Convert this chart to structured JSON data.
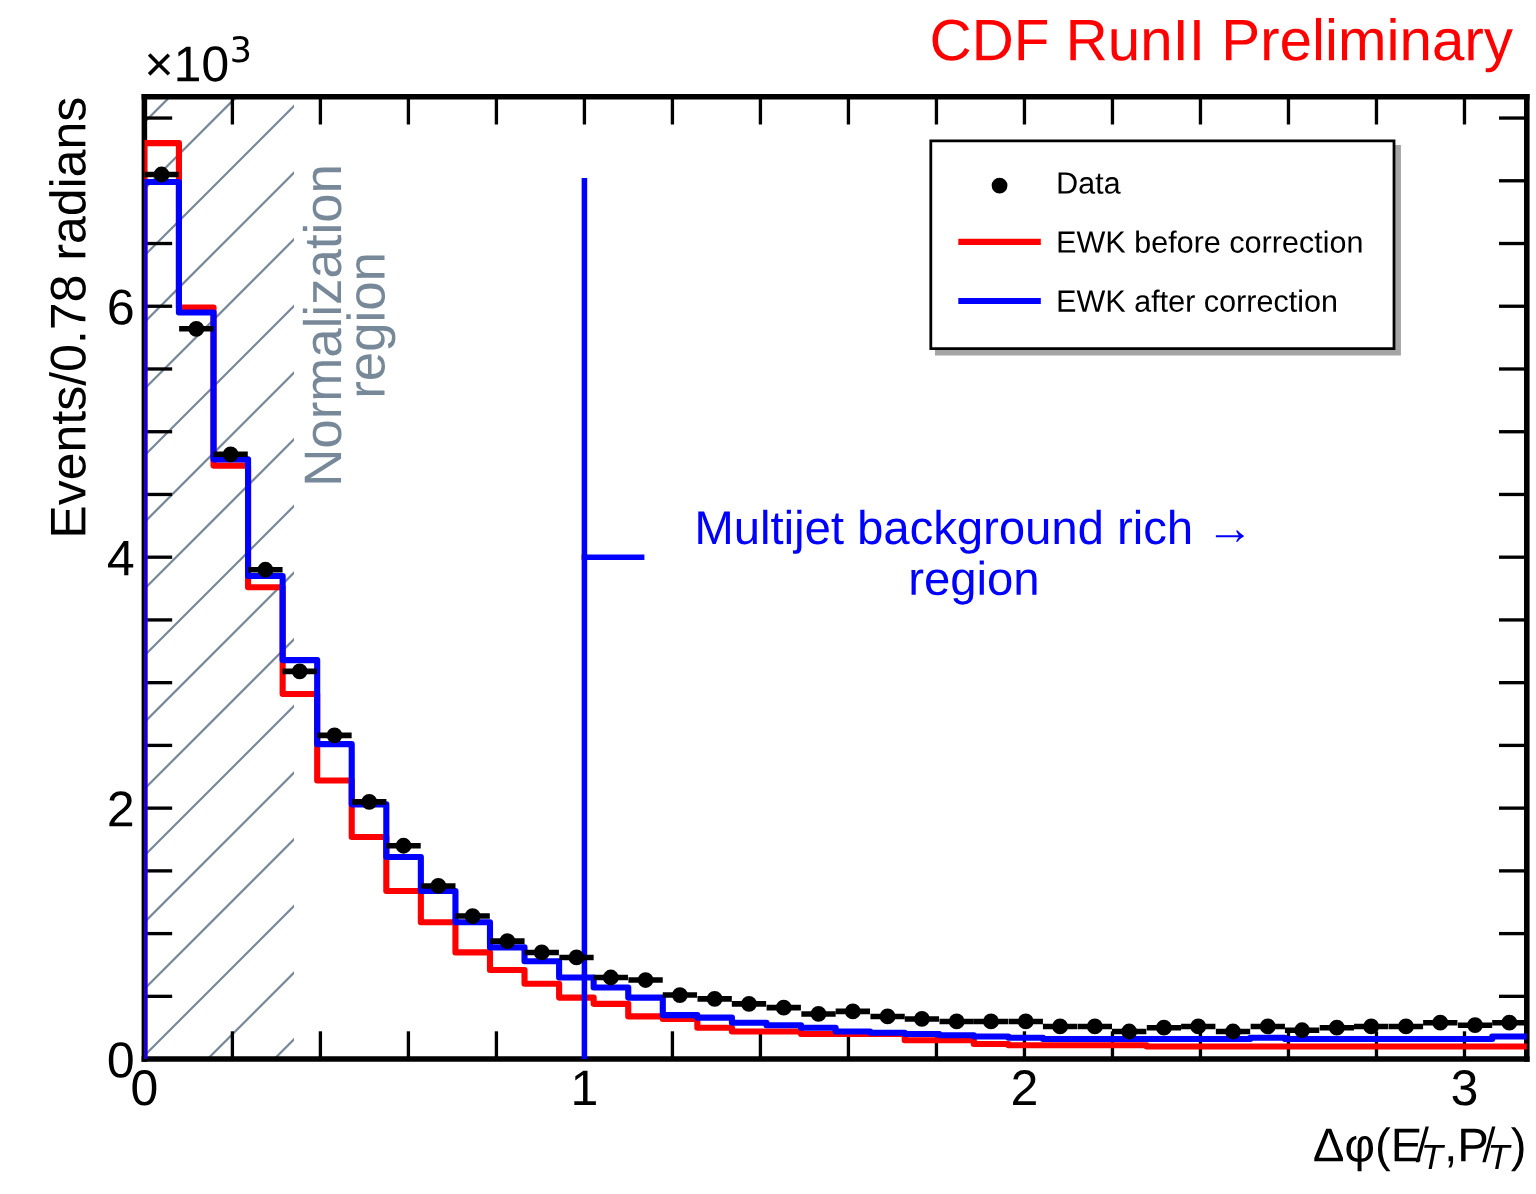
{
  "chart_data": {
    "type": "histogram",
    "title": "CDF RunII Preliminary",
    "xlabel": "Δφ(E̸$_{T}$,P̸$_{T}$)",
    "ylabel": "Events/0.78 radians",
    "annotations": [
      "×10$^{3}$",
      {
        "text": "Multijet background rich →\nregion",
        "x": 1.0,
        "y": 4.0
      }
    ],
    "bins": [
      0,
      0.0785,
      0.1571,
      0.2356,
      0.3142,
      0.3927,
      0.4712,
      0.5498,
      0.6283,
      0.7069,
      0.7854,
      0.8639,
      0.9425,
      1.021,
      1.0996,
      1.1781,
      1.2566,
      1.3352,
      1.4137,
      1.4923,
      1.5708,
      1.6493,
      1.7279,
      1.8064,
      1.885,
      1.9635,
      2.042,
      2.1206,
      2.1991,
      2.2777,
      2.3562,
      2.4347,
      2.5133,
      2.5918,
      2.6704,
      2.7489,
      2.8274,
      2.906,
      2.9845,
      3.0631,
      3.1416
    ],
    "series": [
      {
        "name": "Data",
        "type": "scatter",
        "color": "#000000",
        "x": [
          0.039,
          0.118,
          0.196,
          0.275,
          0.353,
          0.432,
          0.511,
          0.589,
          0.668,
          0.746,
          0.825,
          0.903,
          0.982,
          1.06,
          1.139,
          1.217,
          1.296,
          1.374,
          1.453,
          1.532,
          1.61,
          1.689,
          1.767,
          1.846,
          1.924,
          2.003,
          2.081,
          2.16,
          2.238,
          2.317,
          2.395,
          2.474,
          2.553,
          2.631,
          2.71,
          2.788,
          2.867,
          2.945,
          3.024,
          3.102
        ],
        "values": [
          7.05,
          5.82,
          4.82,
          3.9,
          3.09,
          2.58,
          2.05,
          1.7,
          1.38,
          1.14,
          0.94,
          0.85,
          0.81,
          0.65,
          0.63,
          0.51,
          0.48,
          0.44,
          0.41,
          0.36,
          0.38,
          0.34,
          0.32,
          0.3,
          0.3,
          0.3,
          0.26,
          0.26,
          0.22,
          0.25,
          0.26,
          0.22,
          0.26,
          0.23,
          0.25,
          0.26,
          0.26,
          0.29,
          0.27,
          0.29
        ],
        "xerrors": [
          0.039,
          0.039,
          0.039,
          0.039,
          0.039,
          0.039,
          0.039,
          0.039,
          0.039,
          0.039,
          0.039,
          0.039,
          0.039,
          0.039,
          0.039,
          0.039,
          0.039,
          0.039,
          0.039,
          0.039,
          0.039,
          0.039,
          0.039,
          0.039,
          0.039,
          0.039,
          0.039,
          0.039,
          0.039,
          0.039,
          0.039,
          0.039,
          0.039,
          0.039,
          0.039,
          0.039,
          0.039,
          0.039,
          0.039,
          0.039
        ]
      },
      {
        "name": "EWK before correction",
        "color": "#ff0000",
        "values": [
          7.3,
          5.99,
          4.73,
          3.76,
          2.91,
          2.22,
          1.77,
          1.34,
          1.09,
          0.85,
          0.71,
          0.6,
          0.49,
          0.44,
          0.34,
          0.32,
          0.25,
          0.22,
          0.22,
          0.2,
          0.2,
          0.2,
          0.15,
          0.15,
          0.12,
          0.11,
          0.11,
          0.11,
          0.11,
          0.1,
          0.1,
          0.1,
          0.1,
          0.1,
          0.1,
          0.1,
          0.1,
          0.1,
          0.1,
          0.1
        ]
      },
      {
        "name": "EWK after correction",
        "color": "#0000ff",
        "values": [
          6.99,
          5.95,
          4.78,
          3.85,
          3.18,
          2.51,
          2.03,
          1.61,
          1.34,
          1.09,
          0.89,
          0.78,
          0.65,
          0.57,
          0.49,
          0.35,
          0.33,
          0.29,
          0.27,
          0.25,
          0.22,
          0.21,
          0.2,
          0.19,
          0.18,
          0.17,
          0.16,
          0.16,
          0.16,
          0.16,
          0.16,
          0.16,
          0.17,
          0.16,
          0.16,
          0.16,
          0.16,
          0.16,
          0.16,
          0.18
        ]
      }
    ],
    "ref_lines": [
      {
        "axis": "x",
        "value": 1.0,
        "color": "#0000ff"
      }
    ],
    "bands": [
      {
        "axis": "x",
        "from": 0,
        "to": 0.34,
        "label": "Normalization\nregion",
        "color": "#778899"
      }
    ],
    "xlim": [
      0,
      3.1416
    ],
    "ylim": [
      0,
      7.67
    ],
    "xticks": [
      0,
      {
        "value": 0.2,
        "label": null
      },
      {
        "value": 0.4,
        "label": null
      },
      {
        "value": 0.6,
        "label": null
      },
      {
        "value": 0.8,
        "label": null
      },
      1,
      {
        "value": 1.2,
        "label": null
      },
      {
        "value": 1.4,
        "label": null
      },
      {
        "value": 1.6,
        "label": null
      },
      {
        "value": 1.8,
        "label": null
      },
      2,
      {
        "value": 2.2,
        "label": null
      },
      {
        "value": 2.4,
        "label": null
      },
      {
        "value": 2.6,
        "label": null
      },
      {
        "value": 2.8,
        "label": null
      },
      3
    ],
    "yticks": [
      0,
      {
        "value": 0.5,
        "label": null
      },
      {
        "value": 1,
        "label": null
      },
      {
        "value": 1.5,
        "label": null
      },
      2,
      {
        "value": 2.5,
        "label": null
      },
      {
        "value": 3,
        "label": null
      },
      {
        "value": 3.5,
        "label": null
      },
      4,
      {
        "value": 4.5,
        "label": null
      },
      {
        "value": 5,
        "label": null
      },
      {
        "value": 5.5,
        "label": null
      },
      6,
      {
        "value": 6.5,
        "label": null
      },
      {
        "value": 7,
        "label": null
      },
      {
        "value": 7.5,
        "label": null
      }
    ],
    "legend": "top right",
    "grid": false,
    "marker": "circle"
  }
}
